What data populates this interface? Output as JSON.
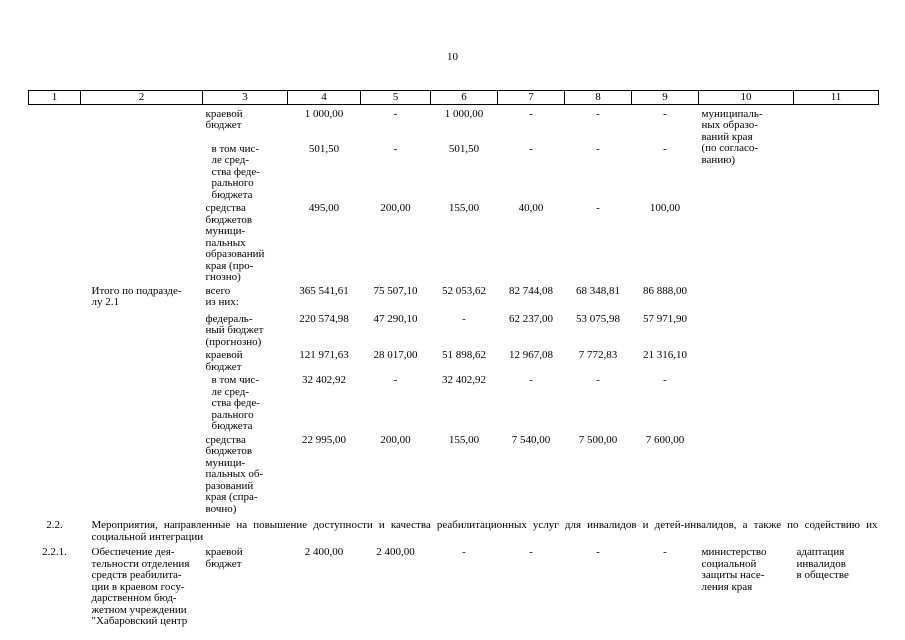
{
  "page_number": "10",
  "table": {
    "header": [
      "1",
      "2",
      "3",
      "4",
      "5",
      "6",
      "7",
      "8",
      "9",
      "10",
      "11"
    ],
    "rows": [
      {
        "cells": [
          {
            "col": 3,
            "text": "краевой\nбюджет"
          },
          {
            "col": 4,
            "text": "1 000,00"
          },
          {
            "col": 5,
            "text": "-"
          },
          {
            "col": 6,
            "text": "1 000,00"
          },
          {
            "col": 7,
            "text": "-"
          },
          {
            "col": 8,
            "text": "-"
          },
          {
            "col": 9,
            "text": "-"
          },
          {
            "col": 10,
            "text": "муниципаль-\nных образо-\nваний края\n(по согласо-\nванию)",
            "rowspan": 3
          }
        ]
      },
      {
        "cells": [
          {
            "col": 3,
            "text": "в том чис-\nле сред-\nства феде-\nрального\nбюджета",
            "indent": true
          },
          {
            "col": 4,
            "text": "501,50"
          },
          {
            "col": 5,
            "text": "-"
          },
          {
            "col": 6,
            "text": "501,50"
          },
          {
            "col": 7,
            "text": "-"
          },
          {
            "col": 8,
            "text": "-"
          },
          {
            "col": 9,
            "text": "-"
          }
        ]
      },
      {
        "cells": [
          {
            "col": 3,
            "text": "средства\nбюджетов\nмуници-\nпальных\nобразований\nкрая (про-\nгнозно)"
          },
          {
            "col": 4,
            "text": "495,00"
          },
          {
            "col": 5,
            "text": "200,00"
          },
          {
            "col": 6,
            "text": "155,00"
          },
          {
            "col": 7,
            "text": "40,00"
          },
          {
            "col": 8,
            "text": "-"
          },
          {
            "col": 9,
            "text": "100,00"
          }
        ]
      },
      {
        "cells": [
          {
            "col": 2,
            "text": "Итого по подразде-\nлу 2.1"
          },
          {
            "col": 3,
            "text": "всего\nиз них:"
          },
          {
            "col": 4,
            "text": "365 541,61"
          },
          {
            "col": 5,
            "text": "75 507,10"
          },
          {
            "col": 6,
            "text": "52 053,62"
          },
          {
            "col": 7,
            "text": "82 744,08"
          },
          {
            "col": 8,
            "text": "68 348,81"
          },
          {
            "col": 9,
            "text": "86 888,00"
          }
        ]
      },
      {
        "cells": [
          {
            "col": 3,
            "text": "федераль-\nный бюджет\n(прогнозно)"
          },
          {
            "col": 4,
            "text": "220 574,98"
          },
          {
            "col": 5,
            "text": "47 290,10"
          },
          {
            "col": 6,
            "text": "-"
          },
          {
            "col": 7,
            "text": "62 237,00"
          },
          {
            "col": 8,
            "text": "53 075,98"
          },
          {
            "col": 9,
            "text": "57 971,90"
          }
        ]
      },
      {
        "cells": [
          {
            "col": 3,
            "text": "краевой\nбюджет"
          },
          {
            "col": 4,
            "text": "121 971,63"
          },
          {
            "col": 5,
            "text": "28 017,00"
          },
          {
            "col": 6,
            "text": "51 898,62"
          },
          {
            "col": 7,
            "text": "12 967,08"
          },
          {
            "col": 8,
            "text": "7 772,83"
          },
          {
            "col": 9,
            "text": "21 316,10"
          }
        ]
      },
      {
        "cells": [
          {
            "col": 3,
            "text": "в том чис-\nле сред-\nства феде-\nрального\nбюджета",
            "indent": true
          },
          {
            "col": 4,
            "text": "32 402,92"
          },
          {
            "col": 5,
            "text": "-"
          },
          {
            "col": 6,
            "text": "32 402,92"
          },
          {
            "col": 7,
            "text": "-"
          },
          {
            "col": 8,
            "text": "-"
          },
          {
            "col": 9,
            "text": "-"
          }
        ]
      },
      {
        "cells": [
          {
            "col": 3,
            "text": "средства\nбюджетов\nмуници-\nпальных об-\nразований\nкрая (спра-\nвочно)"
          },
          {
            "col": 4,
            "text": "22 995,00"
          },
          {
            "col": 5,
            "text": "200,00"
          },
          {
            "col": 6,
            "text": "155,00"
          },
          {
            "col": 7,
            "text": "7 540,00"
          },
          {
            "col": 8,
            "text": "7 500,00"
          },
          {
            "col": 9,
            "text": "7 600,00"
          }
        ]
      },
      {
        "cells": [
          {
            "col": 1,
            "text": "2.2."
          },
          {
            "col": 2,
            "text": "Мероприятия, направленные на повышение доступности и качества реабилитационных услуг для инвалидов и детей-инвалидов, а также по содействию их социальной интеграции",
            "colspan": 10,
            "justify": true
          }
        ]
      },
      {
        "cells": [
          {
            "col": 1,
            "text": "2.2.1."
          },
          {
            "col": 2,
            "text": "Обеспечение дея-\nтельности отделения\nсредств реабилита-\nции в краевом госу-\nдарственном бюд-\nжетном учреждении\n\"Хабаровский центр"
          },
          {
            "col": 3,
            "text": "краевой\nбюджет"
          },
          {
            "col": 4,
            "text": "2 400,00"
          },
          {
            "col": 5,
            "text": "2 400,00"
          },
          {
            "col": 6,
            "text": "-"
          },
          {
            "col": 7,
            "text": "-"
          },
          {
            "col": 8,
            "text": "-"
          },
          {
            "col": 9,
            "text": "-"
          },
          {
            "col": 10,
            "text": "министерство\nсоциальной\nзащиты насе-\nления края"
          },
          {
            "col": 11,
            "text": "адаптация\nинвалидов\nв обществе"
          }
        ]
      }
    ]
  }
}
